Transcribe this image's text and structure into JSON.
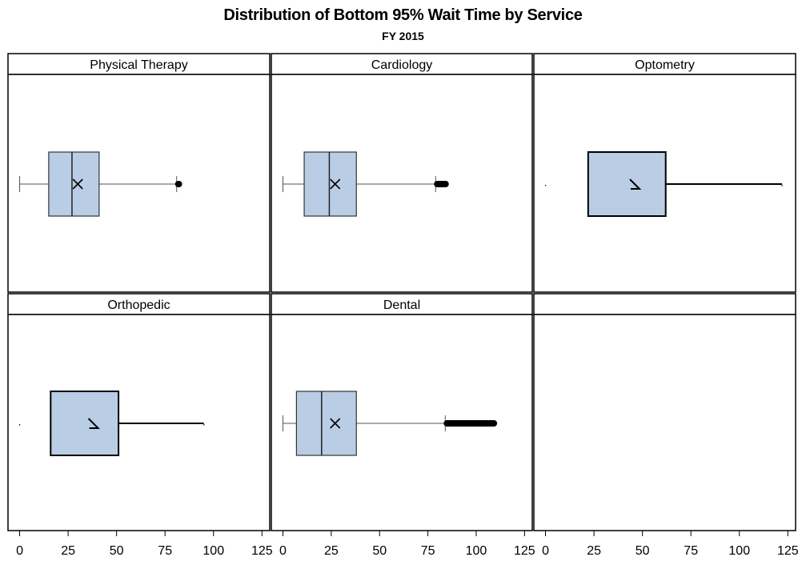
{
  "chart_data": {
    "type": "boxplot",
    "title": "Distribution of Bottom 95% Wait Time by Service",
    "subtitle": "FY 2015",
    "layout": "2 rows x 3 columns panel grid (last panel empty)",
    "x_axis": {
      "ticks": [
        0,
        25,
        50,
        75,
        100,
        125
      ],
      "tick_labels": [
        "0",
        "25",
        "50",
        "75",
        "100",
        "125"
      ],
      "range": [
        -6,
        129
      ]
    },
    "panels": [
      {
        "label": "Physical Therapy",
        "style": "boxplot",
        "whisker_low": 0,
        "q1": 15,
        "median": 27,
        "mean": 30,
        "q3": 41,
        "whisker_high": 81,
        "outliers_from": 81,
        "outliers_to": 83
      },
      {
        "label": "Cardiology",
        "style": "boxplot",
        "whisker_low": 0,
        "q1": 11,
        "median": 24,
        "mean": 27,
        "q3": 38,
        "whisker_high": 79,
        "outliers_from": 79,
        "outliers_to": 85
      },
      {
        "label": "Optometry",
        "style": "compact",
        "min": 0,
        "q1": 22,
        "mean": 46,
        "q3": 62,
        "max": 122
      },
      {
        "label": "Orthopedic",
        "style": "compact",
        "min": 0,
        "q1": 16,
        "mean": 38,
        "q3": 51,
        "max": 95
      },
      {
        "label": "Dental",
        "style": "boxplot",
        "whisker_low": 0,
        "q1": 7,
        "median": 20,
        "mean": 27,
        "q3": 38,
        "whisker_high": 84,
        "outliers_from": 84,
        "outliers_to": 110
      },
      {
        "label": "",
        "style": "empty"
      }
    ],
    "colors": {
      "box_fill": "#b9cde5",
      "box_stroke": "#000000",
      "whisker": "#555555",
      "panel_border": "#000000"
    },
    "grid": false,
    "legend": "none"
  }
}
